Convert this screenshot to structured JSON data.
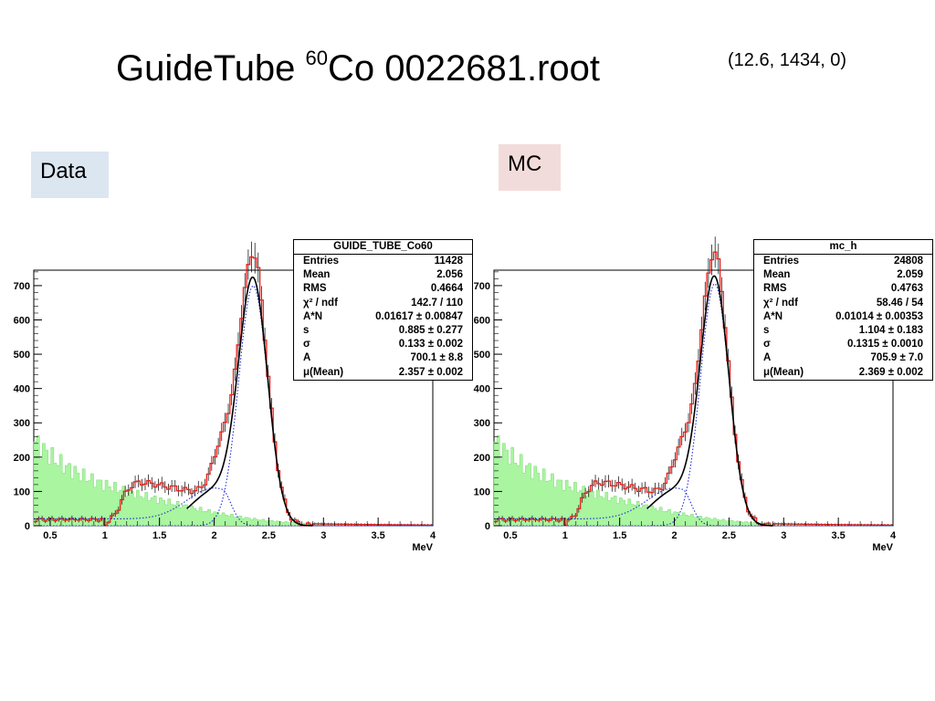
{
  "slide": {
    "title_prefix": "GuideTube ",
    "title_sup": "60",
    "title_suffix": "Co 0022681.root",
    "run_info": "(12.6, 1434, 0)",
    "tag_data": "Data",
    "tag_mc": "MC"
  },
  "colors": {
    "tag_data_bg": "#dce6f1",
    "tag_mc_bg": "#f2dcdb",
    "hist_red": "#e8201c",
    "fit_black": "#000000",
    "fit_blue": "#1f2ad6",
    "background_green": "#a9f5a0"
  },
  "chart_data": [
    {
      "type": "line",
      "name_panel": "Data",
      "stats_title": "GUIDE_TUBE_Co60",
      "stats": [
        {
          "label": "Entries",
          "value": "11428"
        },
        {
          "label": "Mean",
          "value": "2.056"
        },
        {
          "label": "RMS",
          "value": "0.4664"
        },
        {
          "label": "χ² / ndf",
          "value": "142.7 / 110"
        },
        {
          "label": "A*N",
          "value": "0.01617 ± 0.00847"
        },
        {
          "label": "s",
          "value": "0.885 ± 0.277"
        },
        {
          "label": "σ",
          "value": "0.133 ± 0.002"
        },
        {
          "label": "A",
          "value": "700.1 ± 8.8"
        },
        {
          "label": "μ(Mean)",
          "value": "2.357 ± 0.002"
        }
      ],
      "xlabel": "MeV",
      "xlim": [
        0.35,
        4.0
      ],
      "ylim": [
        0,
        745
      ],
      "xticks": [
        "0.5",
        "1",
        "1.5",
        "2",
        "2.5",
        "3",
        "3.5",
        "4"
      ],
      "yticks": [
        "0",
        "100",
        "200",
        "300",
        "400",
        "500",
        "600",
        "700"
      ],
      "fit_range": [
        1.75,
        2.9
      ],
      "gauss": {
        "A": 700.1,
        "mu": 2.357,
        "sigma": 0.133
      },
      "tail": {
        "A": 110,
        "mu": 2.06,
        "sigma": 0.09
      }
    },
    {
      "type": "line",
      "name_panel": "MC",
      "stats_title": "mc_h",
      "stats": [
        {
          "label": "Entries",
          "value": "24808"
        },
        {
          "label": "Mean",
          "value": "2.059"
        },
        {
          "label": "RMS",
          "value": "0.4763"
        },
        {
          "label": "χ² / ndf",
          "value": "58.46 / 54"
        },
        {
          "label": "A*N",
          "value": "0.01014 ± 0.00353"
        },
        {
          "label": "s",
          "value": "1.104 ± 0.183"
        },
        {
          "label": "σ",
          "value": "0.1315 ± 0.0010"
        },
        {
          "label": "A",
          "value": "705.9 ± 7.0"
        },
        {
          "label": "μ(Mean)",
          "value": "2.369 ± 0.002"
        }
      ],
      "xlabel": "MeV",
      "xlim": [
        0.35,
        4.0
      ],
      "ylim": [
        0,
        745
      ],
      "xticks": [
        "0.5",
        "1",
        "1.5",
        "2",
        "2.5",
        "3",
        "3.5",
        "4"
      ],
      "yticks": [
        "0",
        "100",
        "200",
        "300",
        "400",
        "500",
        "600",
        "700"
      ],
      "fit_range": [
        1.75,
        2.9
      ],
      "gauss": {
        "A": 705.9,
        "mu": 2.369,
        "sigma": 0.1315
      },
      "tail": {
        "A": 110,
        "mu": 2.06,
        "sigma": 0.09
      }
    }
  ]
}
